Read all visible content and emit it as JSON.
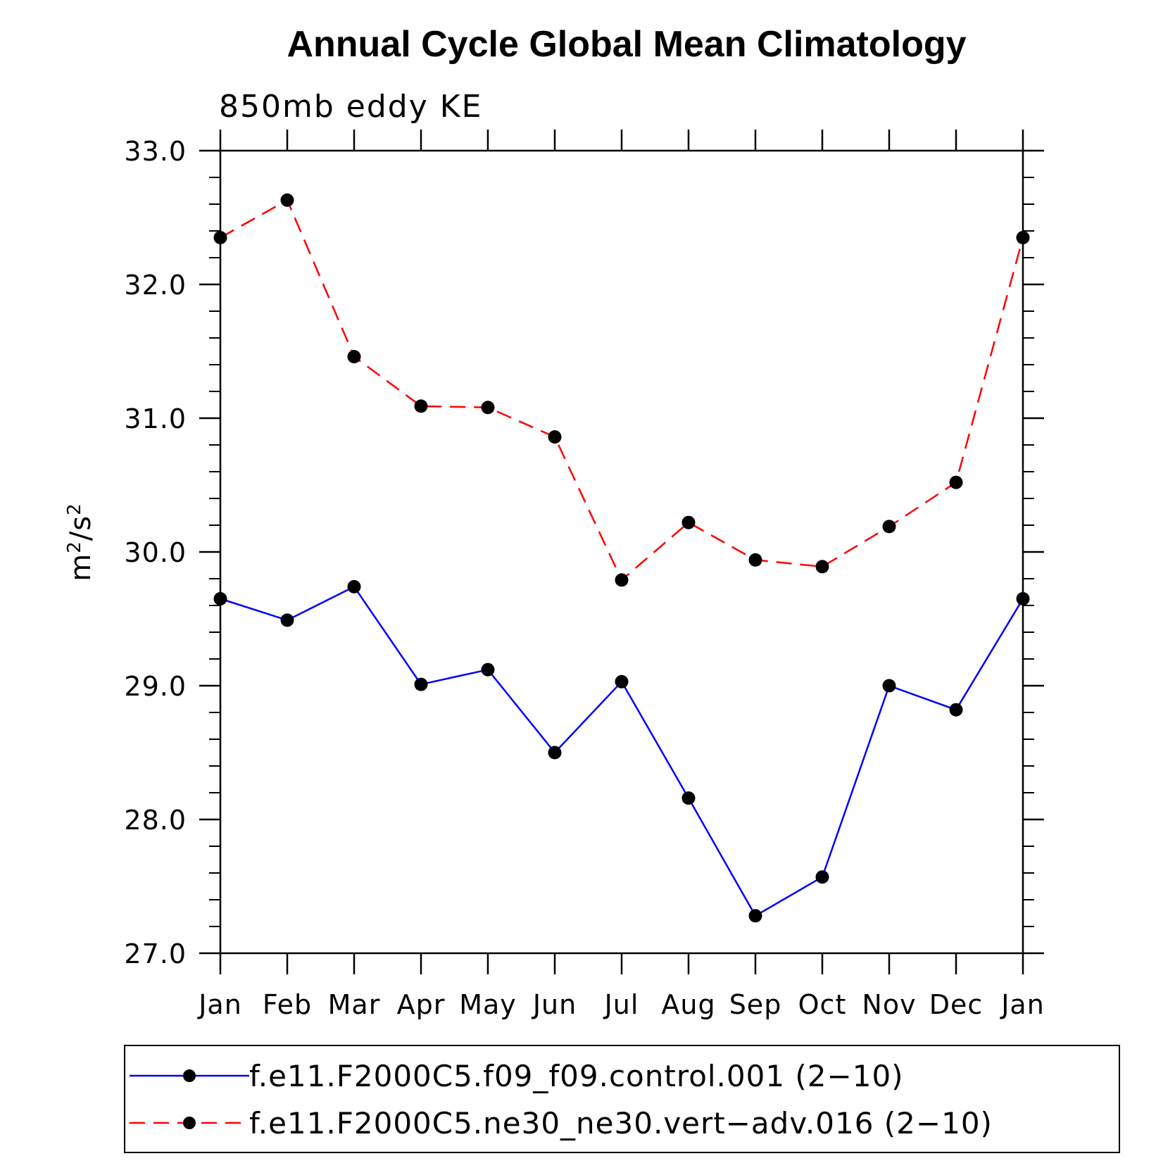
{
  "chart_data": {
    "type": "line",
    "title": "Annual Cycle Global Mean Climatology",
    "subtitle": "850mb eddy KE",
    "ylabel_base": "m",
    "ylabel_exp1": "2",
    "ylabel_mid": "/s",
    "ylabel_exp2": "2",
    "ylim": [
      27.0,
      33.0
    ],
    "yticks": [
      "27.0",
      "28.0",
      "29.0",
      "30.0",
      "31.0",
      "32.0",
      "33.0"
    ],
    "categories": [
      "Jan",
      "Feb",
      "Mar",
      "Apr",
      "May",
      "Jun",
      "Jul",
      "Aug",
      "Sep",
      "Oct",
      "Nov",
      "Dec",
      "Jan"
    ],
    "series": [
      {
        "name": "f.e11.F2000C5.f09_f09.control.001 (2−10)",
        "color": "#0000ff",
        "style": "solid",
        "values": [
          29.65,
          29.49,
          29.74,
          29.01,
          29.12,
          28.5,
          29.03,
          28.16,
          27.28,
          27.57,
          29.0,
          28.82,
          29.65
        ]
      },
      {
        "name": "f.e11.F2000C5.ne30_ne30.vert−adv.016 (2−10)",
        "color": "#ff0000",
        "style": "dashed",
        "values": [
          32.35,
          32.63,
          31.46,
          31.09,
          31.08,
          30.86,
          29.79,
          30.22,
          29.94,
          29.89,
          30.19,
          30.52,
          32.35
        ]
      }
    ],
    "legend_position": "bottom"
  }
}
